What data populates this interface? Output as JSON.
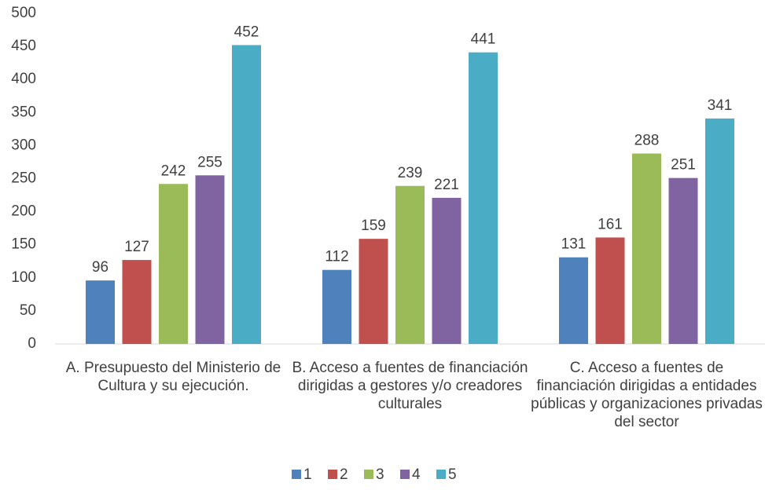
{
  "chart_data": {
    "type": "bar",
    "categories": [
      "A. Presupuesto del Ministerio de Cultura y su ejecución.",
      "B. Acceso a fuentes de financiación dirigidas a gestores y/o creadores culturales",
      "C. Acceso a fuentes de financiación dirigidas a entidades públicas y organizaciones privadas del sector"
    ],
    "series": [
      {
        "name": "1",
        "color": "#4f81bd",
        "values": [
          96,
          112,
          131
        ]
      },
      {
        "name": "2",
        "color": "#c0504d",
        "values": [
          127,
          159,
          161
        ]
      },
      {
        "name": "3",
        "color": "#9bbb59",
        "values": [
          242,
          239,
          288
        ]
      },
      {
        "name": "4",
        "color": "#8064a2",
        "values": [
          255,
          221,
          251
        ]
      },
      {
        "name": "5",
        "color": "#4bacc6",
        "values": [
          452,
          441,
          341
        ]
      }
    ],
    "ylim": [
      0,
      500
    ],
    "yticks": [
      0,
      50,
      100,
      150,
      200,
      250,
      300,
      350,
      400,
      450,
      500
    ],
    "grid": false,
    "legend": "bottom"
  }
}
